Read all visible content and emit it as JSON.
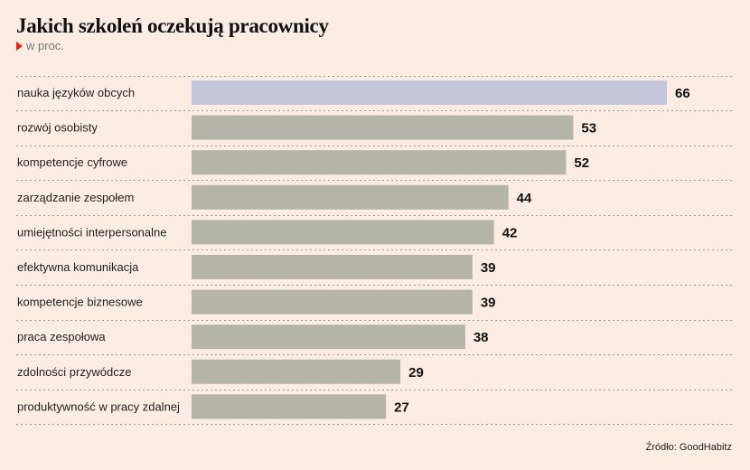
{
  "title": "Jakich szkoleń oczekują pracownicy",
  "subtitle": "w proc.",
  "source": "Źródło: GoodHabitz",
  "colors": {
    "background": "#fbede3",
    "highlight_bar": "#c3c7d9",
    "bar": "#b5b4a8",
    "divider": "#9a9a9a",
    "marker": "#e3261c"
  },
  "chart_data": {
    "type": "bar",
    "orientation": "horizontal",
    "categories": [
      "nauka języków obcych",
      "rozwój osobisty",
      "kompetencje cyfrowe",
      "zarządzanie zespołem",
      "umiejętności interpersonalne",
      "efektywna komunikacja",
      "kompetencje biznesowe",
      "praca zespołowa",
      "zdolności przywódcze",
      "produktywność w pracy zdalnej"
    ],
    "values": [
      66,
      53,
      52,
      44,
      42,
      39,
      39,
      38,
      29,
      27
    ],
    "highlight_index": 0,
    "xlim": [
      0,
      66
    ],
    "grid": false,
    "legend": "none"
  }
}
